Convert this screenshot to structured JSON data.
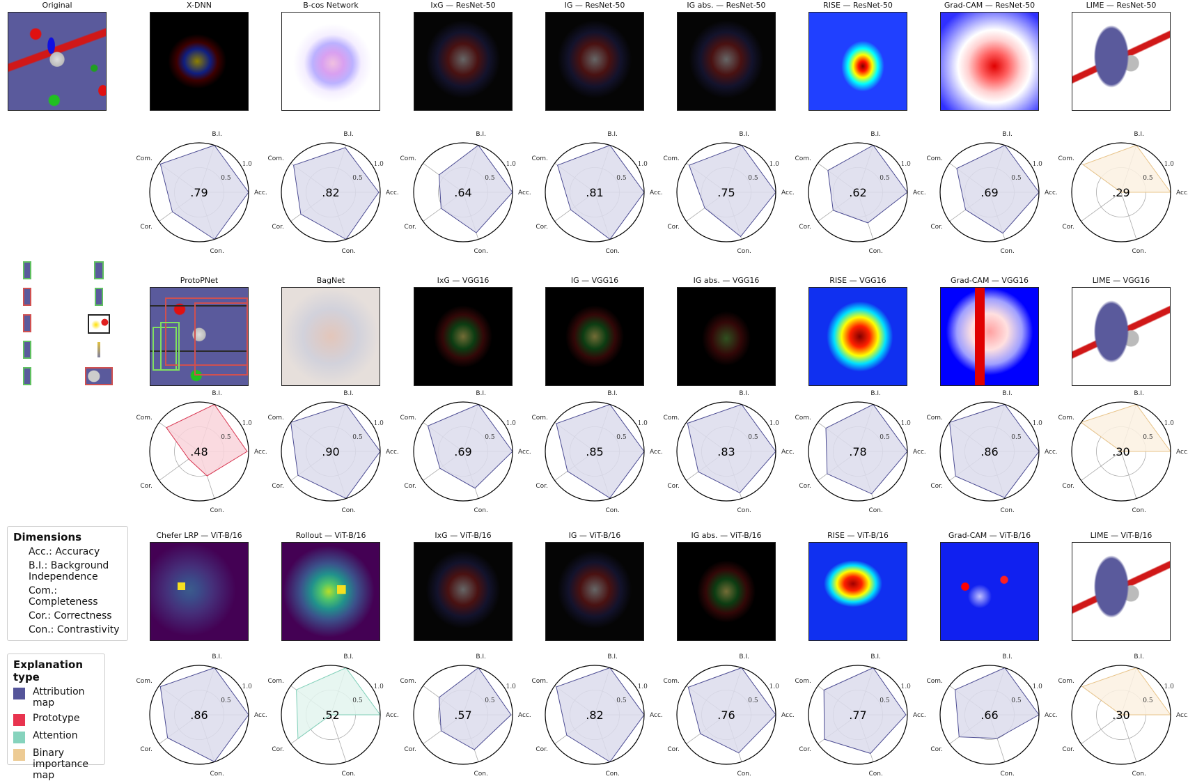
{
  "panels": [
    {
      "title": "Original"
    },
    {
      "title": "X-DNN"
    },
    {
      "title": "B-cos Network"
    },
    {
      "title": "IxG — ResNet-50"
    },
    {
      "title": "IG — ResNet-50"
    },
    {
      "title": "IG abs. — ResNet-50"
    },
    {
      "title": "RISE — ResNet-50"
    },
    {
      "title": "Grad-CAM — ResNet-50"
    },
    {
      "title": "LIME — ResNet-50"
    },
    {
      "title": "ProtoPNet"
    },
    {
      "title": "BagNet"
    },
    {
      "title": "IxG — VGG16"
    },
    {
      "title": "IG — VGG16"
    },
    {
      "title": "IG abs. — VGG16"
    },
    {
      "title": "RISE — VGG16"
    },
    {
      "title": "Grad-CAM — VGG16"
    },
    {
      "title": "LIME — VGG16"
    },
    {
      "title": "Chefer LRP — ViT-B/16"
    },
    {
      "title": "Rollout — ViT-B/16"
    },
    {
      "title": "IxG — ViT-B/16"
    },
    {
      "title": "IG — ViT-B/16"
    },
    {
      "title": "IG abs. — ViT-B/16"
    },
    {
      "title": "RISE — ViT-B/16"
    },
    {
      "title": "Grad-CAM — ViT-B/16"
    },
    {
      "title": "LIME — ViT-B/16"
    }
  ],
  "legend_dimensions": {
    "title": "Dimensions",
    "items": [
      "Acc.: Accuracy",
      "B.I.: Background Independence",
      "Com.: Completeness",
      "Cor.: Correctness",
      "Con.: Contrastivity"
    ]
  },
  "legend_types": {
    "title": "Explanation type",
    "items": [
      {
        "label": "Attribution map",
        "color": "#55559a"
      },
      {
        "label": "Prototype",
        "color": "#e8344f"
      },
      {
        "label": "Attention",
        "color": "#86d3bd"
      },
      {
        "label": "Binary importance map",
        "color": "#edcb94"
      }
    ]
  },
  "type_colors": {
    "attribution": {
      "edge": "#4b4b92",
      "fill": "#dcdcec"
    },
    "prototype": {
      "edge": "#d8344f",
      "fill": "#f9d3da"
    },
    "attention": {
      "edge": "#7fcfb8",
      "fill": "#e3f4ef"
    },
    "binary": {
      "edge": "#e8c48a",
      "fill": "#fbf1e2"
    }
  },
  "chart_data": {
    "type": "radar",
    "axes": [
      "Acc.",
      "B.I.",
      "Com.",
      "Cor.",
      "Con."
    ],
    "rlim": [
      0,
      1
    ],
    "rticks": [
      "0.5",
      "1.0"
    ],
    "grid": true,
    "charts": [
      {
        "method": "X-DNN",
        "type": "attribution",
        "score": ".79",
        "values": [
          1.0,
          1.0,
          0.97,
          0.67,
          1.0
        ]
      },
      {
        "method": "B-cos Network",
        "type": "attribution",
        "score": ".82",
        "values": [
          0.97,
          0.95,
          0.93,
          0.75,
          1.0
        ]
      },
      {
        "method": "IxG — ResNet-50",
        "type": "attribution",
        "score": ".64",
        "values": [
          1.0,
          1.0,
          0.6,
          0.55,
          0.86
        ]
      },
      {
        "method": "IG — ResNet-50",
        "type": "attribution",
        "score": ".81",
        "values": [
          1.0,
          1.0,
          0.93,
          0.6,
          1.0
        ]
      },
      {
        "method": "IG abs. — ResNet-50",
        "type": "attribution",
        "score": ".75",
        "values": [
          1.0,
          1.0,
          0.93,
          0.54,
          0.94
        ]
      },
      {
        "method": "RISE — ResNet-50",
        "type": "attribution",
        "score": ".62",
        "values": [
          1.0,
          1.0,
          0.75,
          0.62,
          0.65
        ]
      },
      {
        "method": "Grad-CAM — ResNet-50",
        "type": "attribution",
        "score": ".69",
        "values": [
          1.0,
          1.0,
          0.82,
          0.6,
          0.87
        ]
      },
      {
        "method": "LIME — ResNet-50",
        "type": "binary",
        "score": ".29",
        "values": [
          1.0,
          1.0,
          0.95,
          0.0,
          0.0
        ]
      },
      {
        "method": "ProtoPNet",
        "type": "prototype",
        "score": ".48",
        "values": [
          0.97,
          1.0,
          0.82,
          0.26,
          0.52
        ]
      },
      {
        "method": "BagNet",
        "type": "attribution",
        "score": ".90",
        "values": [
          1.0,
          1.0,
          1.0,
          0.82,
          1.0
        ]
      },
      {
        "method": "IxG — VGG16",
        "type": "attribution",
        "score": ".69",
        "values": [
          1.0,
          1.0,
          0.88,
          0.58,
          0.78
        ]
      },
      {
        "method": "IG — VGG16",
        "type": "attribution",
        "score": ".85",
        "values": [
          1.0,
          1.0,
          0.96,
          0.68,
          0.99
        ]
      },
      {
        "method": "IG abs. — VGG16",
        "type": "attribution",
        "score": ".83",
        "values": [
          1.0,
          1.0,
          0.97,
          0.7,
          0.88
        ]
      },
      {
        "method": "RISE — VGG16",
        "type": "attribution",
        "score": ".78",
        "values": [
          1.0,
          1.0,
          0.8,
          0.77,
          0.9
        ]
      },
      {
        "method": "Grad-CAM — VGG16",
        "type": "attribution",
        "score": ".86",
        "values": [
          1.0,
          1.0,
          1.0,
          0.85,
          0.98
        ]
      },
      {
        "method": "LIME — VGG16",
        "type": "binary",
        "score": ".30",
        "values": [
          1.0,
          1.0,
          1.0,
          0.0,
          0.0
        ]
      },
      {
        "method": "Chefer LRP — ViT-B/16",
        "type": "attribution",
        "score": ".86",
        "values": [
          1.0,
          1.0,
          0.97,
          0.79,
          1.0
        ]
      },
      {
        "method": "Rollout — ViT-B/16",
        "type": "attention",
        "score": ".52",
        "values": [
          1.0,
          1.0,
          0.86,
          0.82,
          0.0
        ]
      },
      {
        "method": "IxG — ViT-B/16",
        "type": "attribution",
        "score": ".57",
        "values": [
          0.97,
          1.0,
          0.6,
          0.55,
          0.74
        ]
      },
      {
        "method": "IG — ViT-B/16",
        "type": "attribution",
        "score": ".82",
        "values": [
          1.0,
          1.0,
          0.96,
          0.7,
          1.0
        ]
      },
      {
        "method": "IG abs. — ViT-B/16",
        "type": "attribution",
        "score": ".76",
        "values": [
          1.0,
          1.0,
          0.95,
          0.65,
          0.81
        ]
      },
      {
        "method": "RISE — ViT-B/16",
        "type": "attribution",
        "score": ".77",
        "values": [
          0.97,
          1.0,
          0.85,
          0.84,
          0.82
        ]
      },
      {
        "method": "Grad-CAM — ViT-B/16",
        "type": "attribution",
        "score": ".66",
        "values": [
          1.0,
          1.0,
          0.86,
          0.76,
          0.5
        ]
      },
      {
        "method": "LIME — ViT-B/16",
        "type": "binary",
        "score": ".30",
        "values": [
          1.0,
          1.0,
          0.97,
          0.0,
          0.0
        ]
      }
    ]
  }
}
